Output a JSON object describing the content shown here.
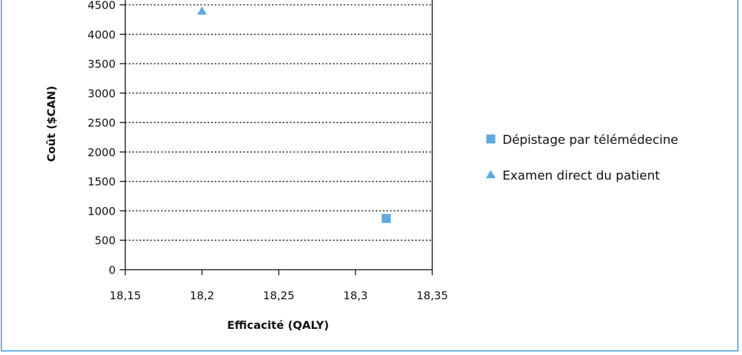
{
  "chart_data": {
    "type": "scatter",
    "xlabel": "Efficacité (QALY)",
    "ylabel": "Coût ($CAN)",
    "xlim": [
      18.15,
      18.35
    ],
    "ylim": [
      0,
      4500
    ],
    "x_ticks": [
      "18,15",
      "18,2",
      "18,25",
      "18,3",
      "18,35"
    ],
    "y_ticks": [
      "0",
      "500",
      "1000",
      "1500",
      "2000",
      "2500",
      "3000",
      "3500",
      "4000",
      "4500"
    ],
    "grid": "horizontal dotted",
    "legend_position": "right",
    "series": [
      {
        "name": "Dépistage par télémédecine",
        "marker": "square",
        "color": "#5ea9e3",
        "points": [
          {
            "x": 18.32,
            "y": 870
          }
        ]
      },
      {
        "name": "Examen direct du patient",
        "marker": "triangle",
        "color": "#5ea9e3",
        "points": [
          {
            "x": 18.2,
            "y": 4390
          }
        ]
      }
    ]
  }
}
